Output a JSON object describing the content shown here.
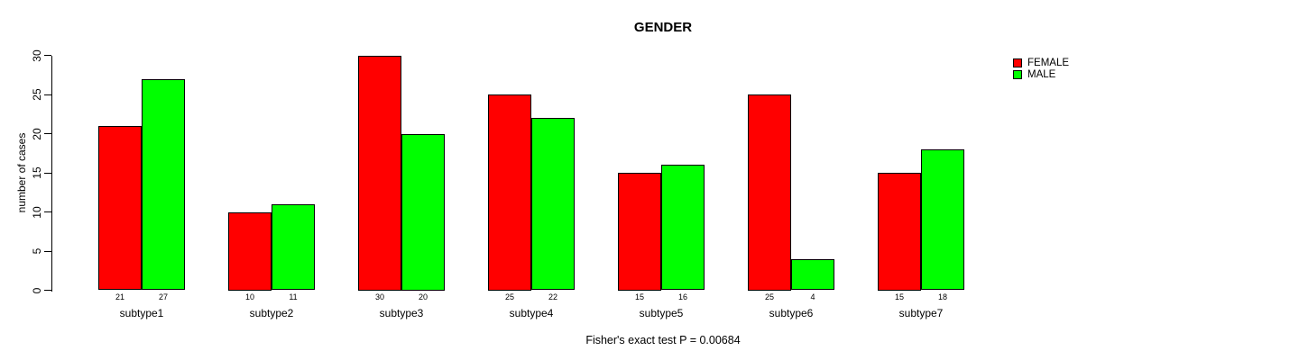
{
  "title": "GENDER",
  "caption": "Fisher's exact test P = 0.00684",
  "ylabel": "number of cases",
  "legend": {
    "items": [
      {
        "label": "FEMALE",
        "color": "#FF0000"
      },
      {
        "label": "MALE",
        "color": "#00FF00"
      }
    ]
  },
  "colors": {
    "female": "#FF0000",
    "male": "#00FF00",
    "axis": "#000000",
    "background": "#FFFFFF"
  },
  "chart_data": {
    "type": "bar",
    "title": "GENDER",
    "xlabel": "",
    "ylabel": "number of cases",
    "categories": [
      "subtype1",
      "subtype2",
      "subtype3",
      "subtype4",
      "subtype5",
      "subtype6",
      "subtype7"
    ],
    "series": [
      {
        "name": "FEMALE",
        "color": "#FF0000",
        "values": [
          21,
          10,
          30,
          25,
          15,
          25,
          15
        ]
      },
      {
        "name": "MALE",
        "color": "#00FF00",
        "values": [
          27,
          11,
          20,
          22,
          16,
          4,
          18
        ]
      }
    ],
    "bar_value_labels_shown": true,
    "ylim": [
      0,
      30
    ],
    "yticks": [
      0,
      5,
      10,
      15,
      20,
      25,
      30
    ],
    "grid": false,
    "legend_position": "top-right-inside",
    "annotation": "Fisher's exact test P = 0.00684"
  }
}
